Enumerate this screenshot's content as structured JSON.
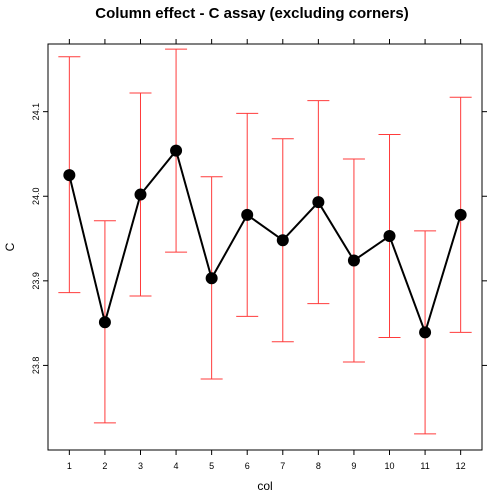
{
  "chart_data": {
    "type": "scatter",
    "title": "Column effect - C assay (excluding corners)",
    "xlabel": "col",
    "ylabel": "C",
    "x": [
      1,
      2,
      3,
      4,
      5,
      6,
      7,
      8,
      9,
      10,
      11,
      12
    ],
    "xticks": [
      "1",
      "2",
      "3",
      "4",
      "5",
      "6",
      "7",
      "8",
      "9",
      "10",
      "11",
      "12"
    ],
    "xlim": [
      0.4,
      12.6
    ],
    "ylim": [
      23.7,
      24.18
    ],
    "yticks": [
      "23.8",
      "23.9",
      "24.0",
      "24.1"
    ],
    "ytick_values": [
      23.8,
      23.9,
      24.0,
      24.1
    ],
    "series": [
      {
        "values": [
          24.025,
          23.851,
          24.002,
          24.054,
          23.903,
          23.978,
          23.948,
          23.993,
          23.924,
          23.953,
          23.839,
          23.978
        ],
        "lower": [
          23.886,
          23.732,
          23.882,
          23.934,
          23.784,
          23.858,
          23.828,
          23.873,
          23.804,
          23.833,
          23.719,
          23.839
        ],
        "upper": [
          24.165,
          23.971,
          24.122,
          24.174,
          24.023,
          24.098,
          24.068,
          24.113,
          24.044,
          24.073,
          23.959,
          24.117
        ],
        "color": "#000000",
        "error_color": "#ff3b3b"
      }
    ],
    "grid": false,
    "legend": "none"
  }
}
